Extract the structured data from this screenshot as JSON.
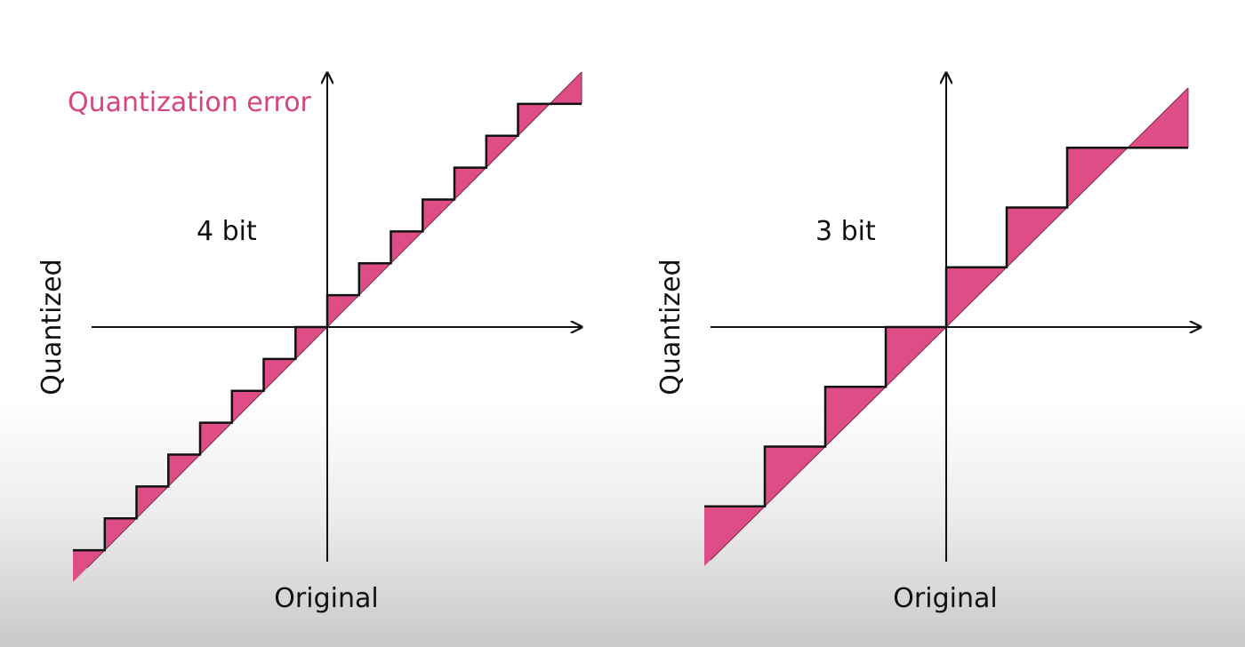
{
  "annotation": {
    "text": "Quantization error",
    "color": "#d6457f"
  },
  "colors": {
    "error_fill": "#de4d86",
    "axis": "#111111"
  },
  "panels": [
    {
      "bits_label": "4 bit",
      "bits": 4,
      "ylabel": "Quantized",
      "xlabel": "Original"
    },
    {
      "bits_label": "3 bit",
      "bits": 3,
      "ylabel": "Quantized",
      "xlabel": "Original"
    }
  ]
}
